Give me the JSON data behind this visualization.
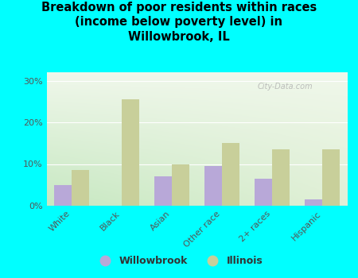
{
  "title": "Breakdown of poor residents within races\n(income below poverty level) in\nWillowbrook, IL",
  "categories": [
    "White",
    "Black",
    "Asian",
    "Other race",
    "2+ races",
    "Hispanic"
  ],
  "willowbrook": [
    5.0,
    0.0,
    7.0,
    9.5,
    6.5,
    1.5
  ],
  "illinois": [
    8.5,
    25.5,
    10.0,
    15.0,
    13.5,
    13.5
  ],
  "willowbrook_color": "#b8a8d8",
  "illinois_color": "#c8cf9a",
  "background_color": "#00ffff",
  "plot_bg_color_topleft": "#c8e8c0",
  "plot_bg_color_topright": "#e8f0e0",
  "plot_bg_color_bottomleft": "#d8ecc8",
  "plot_bg_color_bottomright": "#f8faf2",
  "ylim": [
    0,
    32
  ],
  "yticks": [
    0,
    10,
    20,
    30
  ],
  "ytick_labels": [
    "0%",
    "10%",
    "20%",
    "30%"
  ],
  "watermark": "City-Data.com",
  "legend_willowbrook": "Willowbrook",
  "legend_illinois": "Illinois",
  "bar_width": 0.35,
  "title_fontsize": 10.5,
  "tick_fontsize": 8,
  "legend_fontsize": 9
}
